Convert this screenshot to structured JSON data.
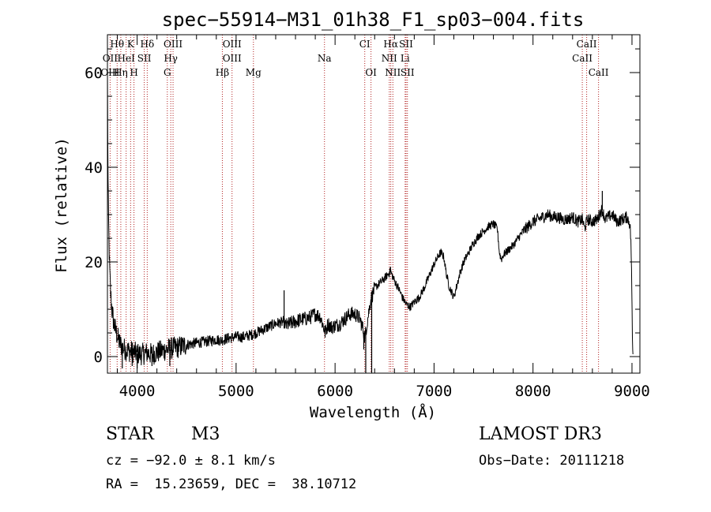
{
  "chart_data": {
    "type": "line",
    "title": "spec−55914−M31_01h38_F1_sp03−004.fits",
    "xlabel": "Wavelength (Å)",
    "ylabel": "Flux (relative)",
    "xlim": [
      3700,
      9080
    ],
    "ylim": [
      -3.5,
      68
    ],
    "x_ticks": [
      4000,
      5000,
      6000,
      7000,
      8000,
      9000
    ],
    "y_ticks": [
      0,
      20,
      40,
      60
    ],
    "series": [
      {
        "name": "spectrum",
        "anchors": [
          [
            3700,
            60
          ],
          [
            3705,
            38
          ],
          [
            3712,
            28
          ],
          [
            3720,
            20
          ],
          [
            3730,
            14
          ],
          [
            3745,
            10
          ],
          [
            3765,
            7
          ],
          [
            3790,
            5
          ],
          [
            3820,
            3
          ],
          [
            3850,
            2
          ],
          [
            3880,
            1.5
          ],
          [
            3920,
            1.2
          ],
          [
            3960,
            1.0
          ],
          [
            4000,
            0.6
          ],
          [
            4050,
            0.5
          ],
          [
            4100,
            0.8
          ],
          [
            4150,
            0.5
          ],
          [
            4200,
            0.9
          ],
          [
            4250,
            1.2
          ],
          [
            4300,
            1.5
          ],
          [
            4350,
            1.8
          ],
          [
            4400,
            1.9
          ],
          [
            4450,
            2.2
          ],
          [
            4500,
            2.5
          ],
          [
            4600,
            2.9
          ],
          [
            4700,
            3.2
          ],
          [
            4800,
            3.6
          ],
          [
            4850,
            3.4
          ],
          [
            4900,
            3.8
          ],
          [
            4950,
            4.0
          ],
          [
            5000,
            4.2
          ],
          [
            5050,
            4.1
          ],
          [
            5100,
            4.3
          ],
          [
            5150,
            4.6
          ],
          [
            5200,
            5.0
          ],
          [
            5300,
            6.0
          ],
          [
            5400,
            7.0
          ],
          [
            5450,
            7.2
          ],
          [
            5480,
            7.3
          ],
          [
            5500,
            6.5
          ],
          [
            5550,
            7.0
          ],
          [
            5600,
            7.4
          ],
          [
            5650,
            7.8
          ],
          [
            5700,
            8.0
          ],
          [
            5750,
            8.3
          ],
          [
            5800,
            9.0
          ],
          [
            5850,
            8.5
          ],
          [
            5880,
            6.5
          ],
          [
            5900,
            5.0
          ],
          [
            5930,
            7.0
          ],
          [
            5960,
            6.2
          ],
          [
            6000,
            6.5
          ],
          [
            6050,
            7.0
          ],
          [
            6100,
            8.0
          ],
          [
            6150,
            9.0
          ],
          [
            6200,
            9.0
          ],
          [
            6250,
            8.0
          ],
          [
            6280,
            6.0
          ],
          [
            6300,
            4.0
          ],
          [
            6330,
            8.0
          ],
          [
            6360,
            12.0
          ],
          [
            6400,
            14.5
          ],
          [
            6450,
            15.5
          ],
          [
            6500,
            16.5
          ],
          [
            6520,
            17.0
          ],
          [
            6540,
            17.5
          ],
          [
            6560,
            18.0
          ],
          [
            6600,
            16.0
          ],
          [
            6640,
            14.5
          ],
          [
            6680,
            12.5
          ],
          [
            6720,
            11.0
          ],
          [
            6760,
            10.5
          ],
          [
            6800,
            11.5
          ],
          [
            6850,
            12.5
          ],
          [
            6900,
            14.5
          ],
          [
            6950,
            17.0
          ],
          [
            7000,
            19.5
          ],
          [
            7050,
            21.5
          ],
          [
            7070,
            22.0
          ],
          [
            7100,
            21.0
          ],
          [
            7120,
            18.0
          ],
          [
            7150,
            15.0
          ],
          [
            7180,
            13.5
          ],
          [
            7200,
            12.5
          ],
          [
            7230,
            15.0
          ],
          [
            7260,
            17.5
          ],
          [
            7300,
            20.0
          ],
          [
            7350,
            22.0
          ],
          [
            7400,
            24.0
          ],
          [
            7450,
            25.5
          ],
          [
            7500,
            26.5
          ],
          [
            7550,
            27.5
          ],
          [
            7600,
            28.0
          ],
          [
            7640,
            27.0
          ],
          [
            7660,
            22.0
          ],
          [
            7680,
            20.5
          ],
          [
            7700,
            21.5
          ],
          [
            7750,
            22.5
          ],
          [
            7800,
            23.5
          ],
          [
            7850,
            25.0
          ],
          [
            7900,
            26.5
          ],
          [
            7950,
            27.5
          ],
          [
            8000,
            28.5
          ],
          [
            8050,
            29.0
          ],
          [
            8100,
            29.5
          ],
          [
            8150,
            30.0
          ],
          [
            8200,
            29.5
          ],
          [
            8250,
            29.5
          ],
          [
            8300,
            29.0
          ],
          [
            8350,
            29.0
          ],
          [
            8400,
            29.5
          ],
          [
            8450,
            28.5
          ],
          [
            8500,
            29.0
          ],
          [
            8520,
            27.0
          ],
          [
            8550,
            29.0
          ],
          [
            8600,
            28.5
          ],
          [
            8650,
            29.0
          ],
          [
            8680,
            30.5
          ],
          [
            8700,
            31.0
          ],
          [
            8730,
            29.0
          ],
          [
            8760,
            29.5
          ],
          [
            8800,
            30.0
          ],
          [
            8850,
            28.5
          ],
          [
            8900,
            29.0
          ],
          [
            8950,
            29.5
          ],
          [
            8980,
            28.0
          ],
          [
            8990,
            24.0
          ],
          [
            9000,
            12.0
          ],
          [
            9005,
            2.0
          ],
          [
            9010,
            0.5
          ]
        ],
        "spikes": [
          [
            5485,
            14.0
          ],
          [
            6310,
            -3.5
          ],
          [
            6370,
            -3.5
          ],
          [
            6290,
            1.5
          ],
          [
            8700,
            35.0
          ],
          [
            6560,
            19.0
          ],
          [
            4000,
            -2.5
          ],
          [
            3850,
            -2.5
          ],
          [
            3950,
            -2.0
          ],
          [
            4150,
            -2.0
          ],
          [
            4330,
            -2.0
          ]
        ]
      }
    ],
    "line_markers": [
      {
        "label": "Hθ",
        "wavelength": 3798,
        "row": 0
      },
      {
        "label": "K",
        "wavelength": 3934,
        "row": 0
      },
      {
        "label": "Hδ",
        "wavelength": 4102,
        "row": 0
      },
      {
        "label": "OIII",
        "wavelength": 4363,
        "row": 0
      },
      {
        "label": "OIII",
        "wavelength": 4959,
        "row": 0
      },
      {
        "label": "CI",
        "wavelength": 6300,
        "row": 0
      },
      {
        "label": "Hα",
        "wavelength": 6563,
        "row": 0
      },
      {
        "label": "SII",
        "wavelength": 6717,
        "row": 0
      },
      {
        "label": "CaII",
        "wavelength": 8542,
        "row": 0
      },
      {
        "label": "OII",
        "wavelength": 3727,
        "row": 1
      },
      {
        "label": "HeI",
        "wavelength": 3889,
        "row": 1
      },
      {
        "label": "SII",
        "wavelength": 4072,
        "row": 1
      },
      {
        "label": "Hγ",
        "wavelength": 4340,
        "row": 1
      },
      {
        "label": "OIII",
        "wavelength": 4959,
        "row": 1
      },
      {
        "label": "Na",
        "wavelength": 5893,
        "row": 1
      },
      {
        "label": "NII",
        "wavelength": 6548,
        "row": 1
      },
      {
        "label": "Li",
        "wavelength": 6708,
        "row": 1
      },
      {
        "label": "CaII",
        "wavelength": 8498,
        "row": 1
      },
      {
        "label": "OIII",
        "wavelength": 3727,
        "row": 2
      },
      {
        "label": "Hη",
        "wavelength": 3835,
        "row": 2
      },
      {
        "label": "H",
        "wavelength": 3968,
        "row": 2
      },
      {
        "label": "G",
        "wavelength": 4305,
        "row": 2
      },
      {
        "label": "Hβ",
        "wavelength": 4861,
        "row": 2
      },
      {
        "label": "Mg",
        "wavelength": 5175,
        "row": 2
      },
      {
        "label": "OI",
        "wavelength": 6363,
        "row": 2
      },
      {
        "label": "NII",
        "wavelength": 6584,
        "row": 2
      },
      {
        "label": "SII",
        "wavelength": 6731,
        "row": 2
      },
      {
        "label": "CaII",
        "wavelength": 8662,
        "row": 2
      }
    ]
  },
  "info": {
    "object_class": "STAR",
    "subclass": "M3",
    "survey": "LAMOST DR3",
    "cz": "cz = −92.0 ± 8.1 km/s",
    "obs_date": "Obs−Date: 20111218",
    "coords": "RA =  15.23659, DEC =  38.10712"
  },
  "colors": {
    "axis": "#000000",
    "spectrum": "#000000",
    "marker_line": "#b22222"
  }
}
